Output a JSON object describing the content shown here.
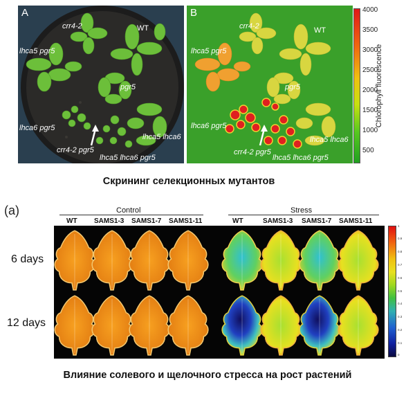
{
  "top_figure": {
    "panel_a": {
      "letter": "A",
      "labels": [
        "crr4-2",
        "WT",
        "lhca5 pgr5",
        "pgr5",
        "lhca6 pgr5",
        "lhca5 lhca6",
        "crr4-2 pgr5",
        "lhca5 lhca6 pgr5"
      ]
    },
    "panel_b": {
      "letter": "B",
      "labels": [
        "crr4-2",
        "WT",
        "lhca5 pgr5",
        "pgr5",
        "lhca6 pgr5",
        "lhca5 lhca6",
        "crr4-2 pgr5",
        "lhca5 lhca6 pgr5"
      ]
    },
    "colorbar": {
      "label": "Chlorophyll fluorescence",
      "ticks": [
        "4000",
        "3500",
        "3000",
        "2500",
        "2000",
        "1500",
        "1000",
        "500"
      ]
    },
    "caption": "Скрининг селекционных мутантов"
  },
  "bottom_figure": {
    "panel_letter": "(a)",
    "group_control": "Control",
    "group_stress": "Stress",
    "columns_control": [
      "WT",
      "SAMS1-3",
      "SAMS1-7",
      "SAMS1-11"
    ],
    "columns_stress": [
      "WT",
      "SAMS1-3",
      "SAMS1-7",
      "SAMS1-11"
    ],
    "rows": [
      "6 days",
      "12 days"
    ],
    "colorbar_ticks": [
      "1",
      "0.9",
      "0.8",
      "0.7",
      "0.6",
      "0.5",
      "0.4",
      "0.3",
      "0.2",
      "0.1",
      "0"
    ],
    "caption": "Влияние солевого и щелочного стресса на рост растений"
  },
  "colors": {
    "panel_a_bg": "#2a3f4f",
    "panel_b_bg": "#3aa02a",
    "leaf_green": "#6cbf3a",
    "leaf_orange": "#f29a1e"
  }
}
